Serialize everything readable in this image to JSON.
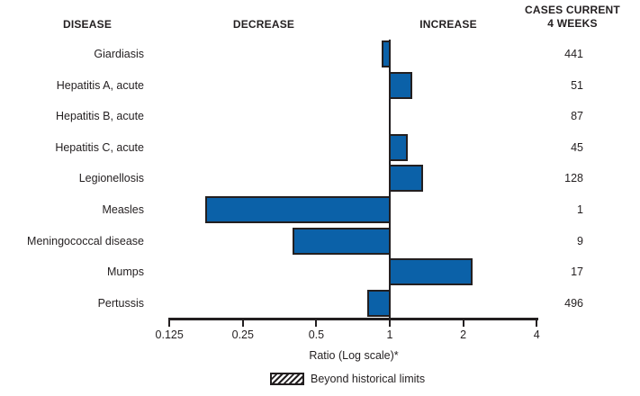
{
  "chart_data": {
    "type": "bar",
    "orientation": "horizontal",
    "title": "",
    "column_headers": {
      "disease": "DISEASE",
      "decrease": "DECREASE",
      "increase": "INCREASE",
      "cases_line1": "CASES CURRENT",
      "cases_line2": "4 WEEKS"
    },
    "x_axis": {
      "label": "Ratio (Log scale)*",
      "scale": "log2",
      "range": [
        0.125,
        4
      ],
      "baseline": 1,
      "ticks": [
        0.125,
        0.25,
        0.5,
        1,
        2,
        4
      ],
      "tick_labels": [
        "0.125",
        "0.25",
        "0.5",
        "1",
        "2",
        "4"
      ]
    },
    "rows": [
      {
        "disease": "Giardiasis",
        "ratio": 0.93,
        "cases": "441",
        "beyond_limits": false
      },
      {
        "disease": "Hepatitis A, acute",
        "ratio": 1.24,
        "cases": "51",
        "beyond_limits": false
      },
      {
        "disease": "Hepatitis B, acute",
        "ratio": 1.0,
        "cases": "87",
        "beyond_limits": false
      },
      {
        "disease": "Hepatitis C, acute",
        "ratio": 1.19,
        "cases": "45",
        "beyond_limits": false
      },
      {
        "disease": "Legionellosis",
        "ratio": 1.37,
        "cases": "128",
        "beyond_limits": false
      },
      {
        "disease": "Measles",
        "ratio": 0.175,
        "cases": "1",
        "beyond_limits": false
      },
      {
        "disease": "Meningococcal disease",
        "ratio": 0.4,
        "cases": "9",
        "beyond_limits": false
      },
      {
        "disease": "Mumps",
        "ratio": 2.19,
        "cases": "17",
        "beyond_limits": false
      },
      {
        "disease": "Pertussis",
        "ratio": 0.81,
        "cases": "496",
        "beyond_limits": false
      }
    ],
    "legend": {
      "label": "Beyond historical limits",
      "swatch": "hatched"
    },
    "colors": {
      "bar_fill": "#0B61A8",
      "bar_border": "#231F20",
      "text": "#231F20",
      "axis": "#231F20"
    },
    "layout_hints": {
      "grid": false,
      "legend_position": "bottom",
      "baseline_line": true
    }
  }
}
